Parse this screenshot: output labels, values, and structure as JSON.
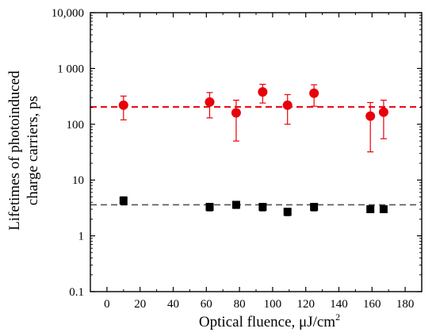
{
  "chart_data": {
    "type": "scatter",
    "xlabel": "Optical fluence, μJ/cm",
    "xlabel_sup": "2",
    "ylabel_line1": "Lifetimes of photoinduced",
    "ylabel_line2": "charge carriers, ps",
    "xlim": [
      -10,
      190
    ],
    "ylim": [
      0.1,
      10000
    ],
    "y_scale": "log",
    "grid": false,
    "x_ticks": [
      0,
      20,
      40,
      60,
      80,
      100,
      120,
      140,
      160,
      180
    ],
    "x_tick_labels": [
      "0",
      "20",
      "40",
      "60",
      "80",
      "100",
      "120",
      "140",
      "160",
      "180"
    ],
    "y_ticks": [
      0.1,
      1,
      10,
      100,
      1000,
      10000
    ],
    "y_tick_labels": [
      "0.1",
      "1",
      "10",
      "100",
      "1 000",
      "10,000"
    ],
    "series": [
      {
        "marker": "circle",
        "color": "#e8000b",
        "x": [
          10,
          62,
          78,
          94,
          109,
          125,
          159,
          167
        ],
        "y": [
          220,
          250,
          160,
          380,
          220,
          360,
          140,
          165
        ],
        "y_low": [
          120,
          130,
          50,
          240,
          100,
          210,
          32,
          55
        ],
        "y_high": [
          320,
          370,
          270,
          520,
          340,
          510,
          245,
          270
        ],
        "mean_line": 205,
        "mean_line_color": "#e8000b"
      },
      {
        "marker": "square",
        "color": "#000000",
        "x": [
          10,
          62,
          78,
          94,
          109,
          125,
          159,
          167
        ],
        "y": [
          4.3,
          3.3,
          3.6,
          3.3,
          2.7,
          3.3,
          3.0,
          3.0
        ],
        "y_low": [
          3.6,
          2.8,
          3.1,
          2.8,
          2.3,
          2.8,
          2.6,
          2.6
        ],
        "y_high": [
          5.0,
          3.8,
          4.1,
          3.8,
          3.1,
          3.8,
          3.4,
          3.4
        ],
        "mean_line": 3.6,
        "mean_line_color": "#555555"
      }
    ]
  }
}
